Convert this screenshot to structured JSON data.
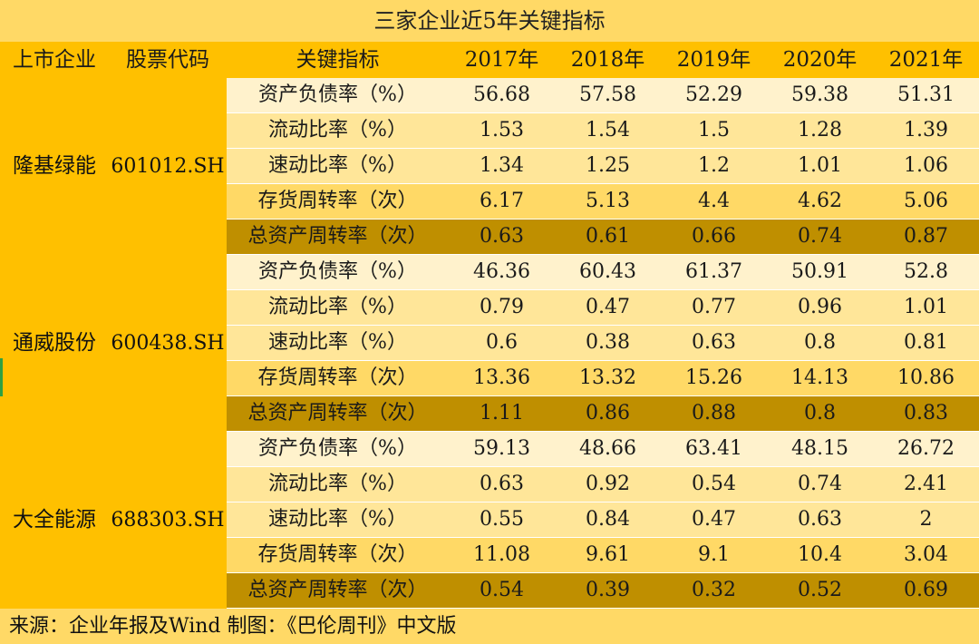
{
  "chart_data": {
    "type": "table",
    "title": "三家企业近5年关键指标",
    "columns": [
      "上市企业",
      "股票代码",
      "关键指标",
      "2017年",
      "2018年",
      "2019年",
      "2020年",
      "2021年"
    ],
    "companies": [
      {
        "name": "隆基绿能",
        "code": "601012.SH",
        "rows": [
          {
            "metric": "资产负债率（%）",
            "values": [
              "56.68",
              "57.58",
              "52.29",
              "59.38",
              "51.31"
            ]
          },
          {
            "metric": "流动比率（%）",
            "values": [
              "1.53",
              "1.54",
              "1.5",
              "1.28",
              "1.39"
            ]
          },
          {
            "metric": "速动比率（%）",
            "values": [
              "1.34",
              "1.25",
              "1.2",
              "1.01",
              "1.06"
            ]
          },
          {
            "metric": "存货周转率（次）",
            "values": [
              "6.17",
              "5.13",
              "4.4",
              "4.62",
              "5.06"
            ]
          },
          {
            "metric": "总资产周转率（次）",
            "values": [
              "0.63",
              "0.61",
              "0.66",
              "0.74",
              "0.87"
            ]
          }
        ]
      },
      {
        "name": "通威股份",
        "code": "600438.SH",
        "rows": [
          {
            "metric": "资产负债率（%）",
            "values": [
              "46.36",
              "60.43",
              "61.37",
              "50.91",
              "52.8"
            ]
          },
          {
            "metric": "流动比率（%）",
            "values": [
              "0.79",
              "0.47",
              "0.77",
              "0.96",
              "1.01"
            ]
          },
          {
            "metric": "速动比率（%）",
            "values": [
              "0.6",
              "0.38",
              "0.63",
              "0.8",
              "0.81"
            ]
          },
          {
            "metric": "存货周转率（次）",
            "values": [
              "13.36",
              "13.32",
              "15.26",
              "14.13",
              "10.86"
            ]
          },
          {
            "metric": "总资产周转率（次）",
            "values": [
              "1.11",
              "0.86",
              "0.88",
              "0.8",
              "0.83"
            ]
          }
        ]
      },
      {
        "name": "大全能源",
        "code": "688303.SH",
        "rows": [
          {
            "metric": "资产负债率（%）",
            "values": [
              "59.13",
              "48.66",
              "63.41",
              "48.15",
              "26.72"
            ]
          },
          {
            "metric": "流动比率（%）",
            "values": [
              "0.63",
              "0.92",
              "0.54",
              "0.74",
              "2.41"
            ]
          },
          {
            "metric": "速动比率（%）",
            "values": [
              "0.55",
              "0.84",
              "0.47",
              "0.63",
              "2"
            ]
          },
          {
            "metric": "存货周转率（次）",
            "values": [
              "11.08",
              "9.61",
              "9.1",
              "10.4",
              "3.04"
            ]
          },
          {
            "metric": "总资产周转率（次）",
            "values": [
              "0.54",
              "0.39",
              "0.32",
              "0.52",
              "0.69"
            ]
          }
        ]
      }
    ],
    "footer": "来源：企业年报及Wind 制图：《巴伦周刊》中文版"
  }
}
